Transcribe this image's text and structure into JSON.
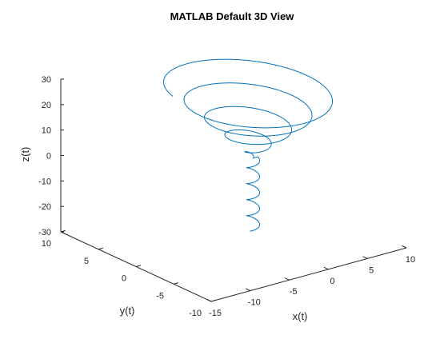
{
  "chart_data": {
    "type": "line",
    "title": "MATLAB Default 3D View",
    "xlabel": "x(t)",
    "ylabel": "y(t)",
    "zlabel": "z(t)",
    "xlim": [
      -15,
      10
    ],
    "ylim": [
      -10,
      10
    ],
    "zlim": [
      -30,
      30
    ],
    "x_ticks": [
      -15,
      -10,
      -5,
      0,
      5,
      10
    ],
    "y_ticks": [
      -10,
      -5,
      0,
      5,
      10
    ],
    "z_ticks": [
      -30,
      -20,
      -10,
      0,
      10,
      20,
      30
    ],
    "grid": false,
    "series": [
      {
        "color": "#0072bd",
        "description": "conical spiral with z from about -28 to 28",
        "equation": {
          "t_range": [
            -28,
            28
          ],
          "x": "0.3*max(t,0)*cos(t)",
          "y": "0.3*max(t,0)*sin(t)",
          "z": "t",
          "note_negative_branch": "small radius ~0.6 for z<0"
        }
      }
    ]
  }
}
